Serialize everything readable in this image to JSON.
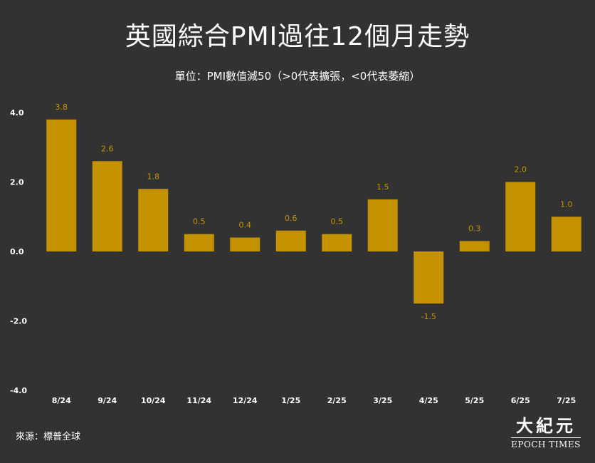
{
  "title": "英國綜合PMI過往12個月走勢",
  "subtitle": "單位：PMI數值減50（>0代表擴張，<0代表萎縮）",
  "source": "來源：標普全球",
  "logo": {
    "cn": "大紀元",
    "en": "EPOCH TIMES"
  },
  "colors": {
    "background": "#323232",
    "bar": "#C49200",
    "value_label": "#C49200",
    "axis_text": "#ffffff"
  },
  "chart_data": {
    "type": "bar",
    "categories": [
      "8/24",
      "9/24",
      "10/24",
      "11/24",
      "12/24",
      "1/25",
      "2/25",
      "3/25",
      "4/25",
      "5/25",
      "6/25",
      "7/25"
    ],
    "values": [
      3.8,
      2.6,
      1.8,
      0.5,
      0.4,
      0.6,
      0.5,
      1.5,
      -1.5,
      0.3,
      2.0,
      1.0
    ],
    "value_labels": [
      "3.8",
      "2.6",
      "1.8",
      "0.5",
      "0.4",
      "0.6",
      "0.5",
      "1.5",
      "-1.5",
      "0.3",
      "2.0",
      "1.0"
    ],
    "yticks": [
      4.0,
      2.0,
      0.0,
      -2.0,
      -4.0
    ],
    "ytick_labels": [
      "4.0",
      "2.0",
      "0.0",
      "-2.0",
      "-4.0"
    ],
    "ylim": [
      -4,
      4
    ],
    "grid": false,
    "legend": "none"
  }
}
